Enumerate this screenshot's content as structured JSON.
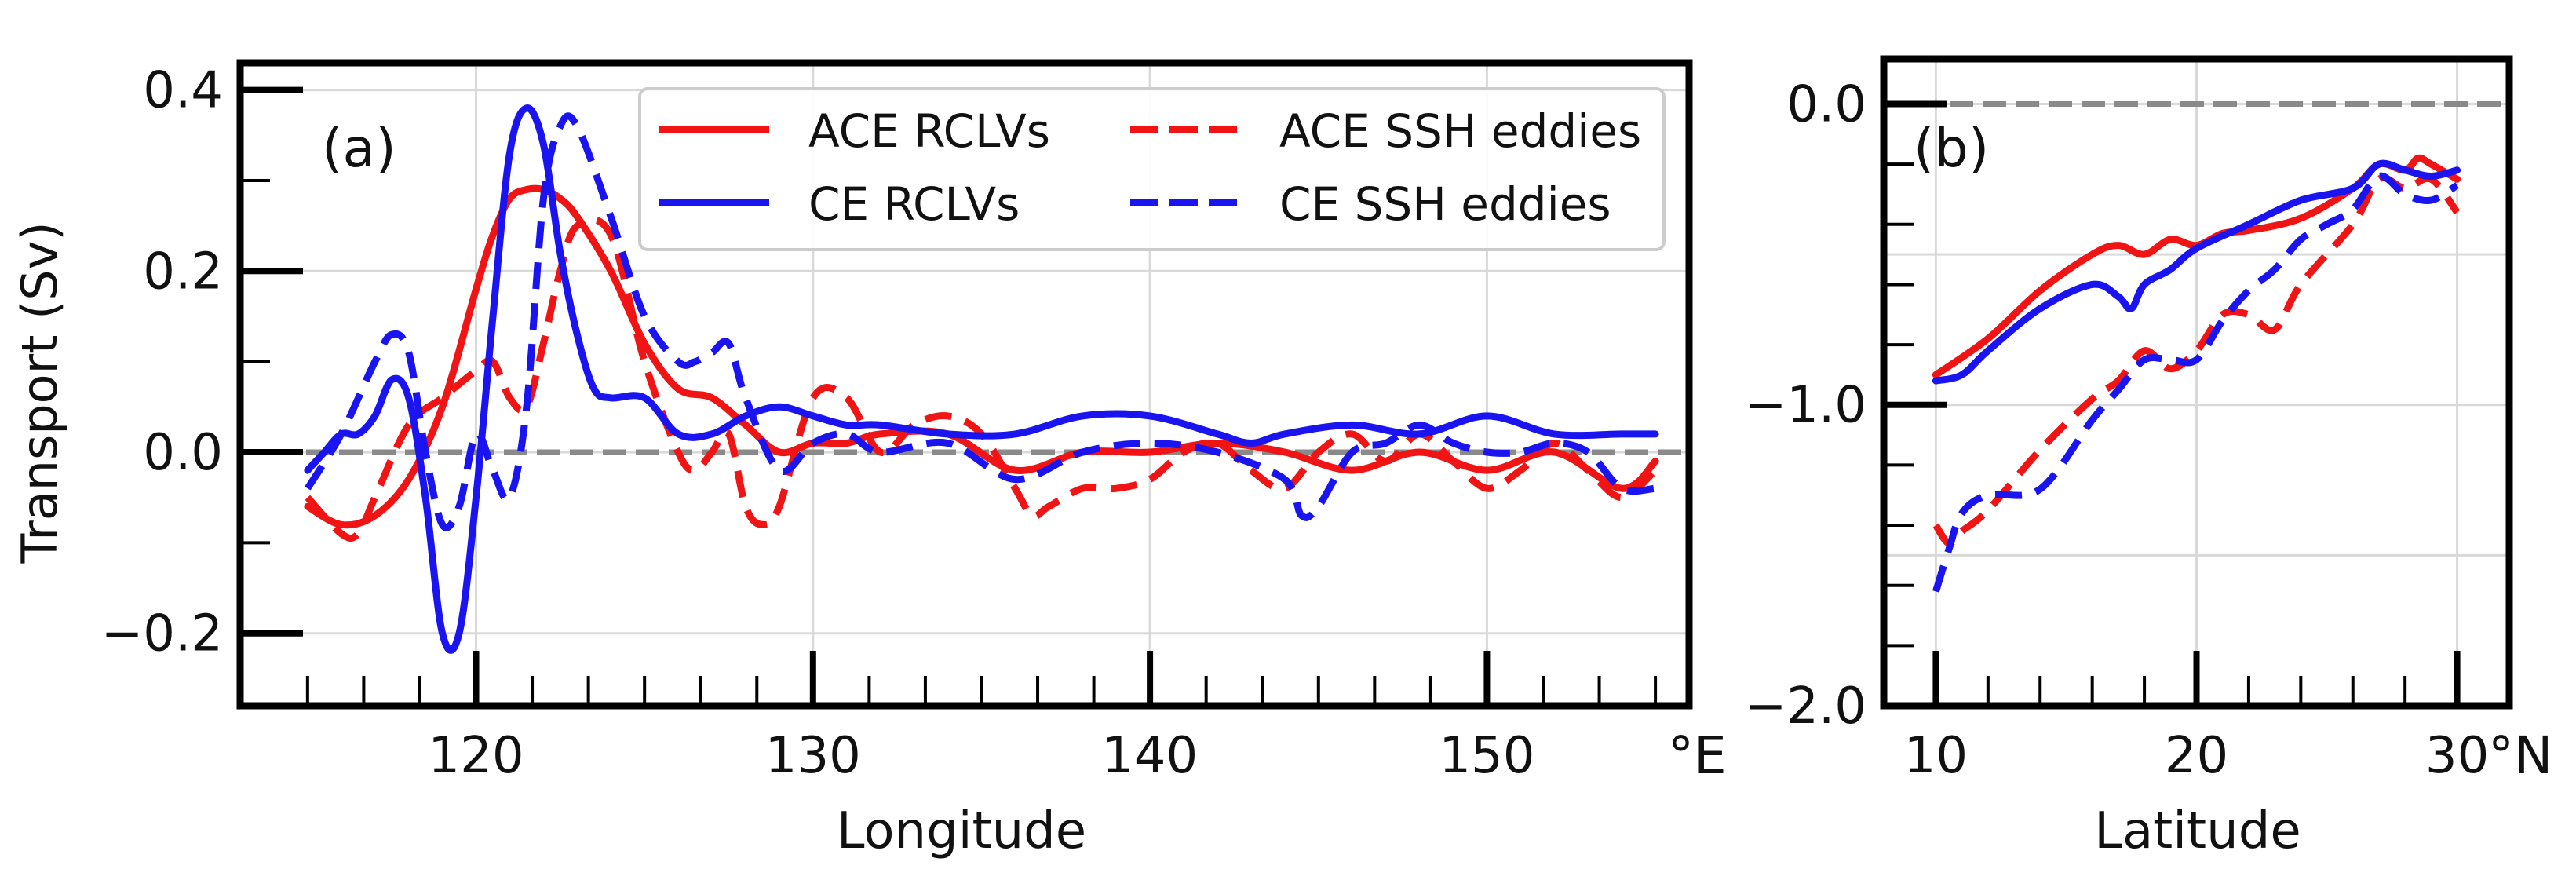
{
  "figure": {
    "ylabel": "Transport (Sv)",
    "colors": {
      "ace": "#f01414",
      "ce": "#1a14f0",
      "zero_line": "#8a8a8a",
      "grid": "#d9d9d9",
      "axis": "#000000"
    }
  },
  "legend": [
    {
      "label": "ACE RCLVs",
      "color": "#f01414",
      "dash": "solid"
    },
    {
      "label": "ACE SSH eddies",
      "color": "#f01414",
      "dash": "dashed"
    },
    {
      "label": "CE RCLVs",
      "color": "#1a14f0",
      "dash": "solid"
    },
    {
      "label": "CE SSH eddies",
      "color": "#1a14f0",
      "dash": "dashed"
    }
  ],
  "chart_data": [
    {
      "type": "line",
      "panel_label": "(a)",
      "xlabel": "Longitude",
      "ylabel": "Transport (Sv)",
      "x_unit_label": "°E",
      "xlim": [
        113,
        156
      ],
      "ylim": [
        -0.28,
        0.43
      ],
      "xticks": [
        120,
        130,
        140,
        150
      ],
      "xtick_labels": [
        "120",
        "130",
        "140",
        "150"
      ],
      "yticks": [
        0.4,
        0.2,
        0.0,
        -0.2
      ],
      "ytick_labels": [
        "0.4",
        "0.2",
        "0.0",
        "−0.2"
      ],
      "grid": true,
      "legend_position": "top-right",
      "zero_line": 0.0,
      "series": [
        {
          "name": "ACE RCLVs",
          "style": "solid",
          "color": "#f01414",
          "x": [
            115,
            116,
            117,
            118,
            119,
            120,
            120.5,
            121,
            121.5,
            122,
            122.5,
            123,
            124,
            125,
            126,
            127,
            128,
            129,
            130,
            131,
            132,
            134,
            136,
            138,
            140,
            142,
            144,
            146,
            148,
            150,
            152,
            154,
            155
          ],
          "y": [
            -0.06,
            -0.08,
            -0.07,
            -0.03,
            0.05,
            0.18,
            0.24,
            0.28,
            0.29,
            0.29,
            0.28,
            0.26,
            0.2,
            0.12,
            0.07,
            0.06,
            0.03,
            0.0,
            0.01,
            0.01,
            0.02,
            0.02,
            -0.02,
            0.0,
            0.0,
            0.01,
            0.0,
            -0.02,
            0.0,
            -0.02,
            0.0,
            -0.04,
            -0.01
          ]
        },
        {
          "name": "ACE SSH eddies",
          "style": "dashed",
          "color": "#f01414",
          "x": [
            115,
            116,
            116.5,
            117,
            118,
            119,
            120,
            120.5,
            121,
            121.5,
            122,
            122.5,
            123,
            124,
            125,
            126,
            126.5,
            127,
            127.5,
            128,
            128.5,
            129,
            130,
            131,
            132,
            133,
            134,
            135,
            136,
            136.5,
            137,
            138,
            139,
            140,
            141,
            142,
            143,
            144,
            145,
            146,
            147,
            148,
            149,
            150,
            151,
            152,
            153,
            154,
            155
          ],
          "y": [
            -0.05,
            -0.09,
            -0.09,
            -0.05,
            0.03,
            0.06,
            0.09,
            0.1,
            0.06,
            0.05,
            0.12,
            0.2,
            0.25,
            0.24,
            0.1,
            0.0,
            -0.02,
            0.0,
            0.02,
            -0.06,
            -0.08,
            -0.06,
            0.06,
            0.06,
            0.0,
            0.03,
            0.04,
            0.02,
            -0.04,
            -0.07,
            -0.06,
            -0.04,
            -0.04,
            -0.03,
            0.0,
            0.01,
            -0.02,
            -0.04,
            0.0,
            0.02,
            -0.01,
            0.02,
            -0.01,
            -0.04,
            -0.02,
            0.01,
            -0.02,
            -0.05,
            -0.02
          ]
        },
        {
          "name": "CE RCLVs",
          "style": "solid",
          "color": "#1a14f0",
          "x": [
            115,
            115.5,
            116,
            116.5,
            117,
            117.5,
            118,
            118.5,
            119,
            119.5,
            120,
            120.5,
            121,
            121.5,
            122,
            122.5,
            123,
            123.5,
            124,
            125,
            126,
            127,
            128,
            129,
            130,
            131,
            132,
            134,
            136,
            138,
            140,
            142,
            143,
            144,
            146,
            148,
            150,
            152,
            154,
            155
          ],
          "y": [
            -0.02,
            0.0,
            0.02,
            0.02,
            0.04,
            0.08,
            0.06,
            -0.05,
            -0.2,
            -0.2,
            -0.05,
            0.15,
            0.33,
            0.38,
            0.34,
            0.22,
            0.13,
            0.07,
            0.06,
            0.06,
            0.02,
            0.02,
            0.04,
            0.05,
            0.04,
            0.03,
            0.03,
            0.02,
            0.02,
            0.04,
            0.04,
            0.02,
            0.01,
            0.02,
            0.03,
            0.02,
            0.04,
            0.02,
            0.02,
            0.02
          ]
        },
        {
          "name": "CE SSH eddies",
          "style": "dashed",
          "color": "#1a14f0",
          "x": [
            115,
            116,
            117,
            117.5,
            118,
            118.5,
            119,
            119.5,
            120,
            120.5,
            121,
            121.5,
            122,
            122.5,
            123,
            124,
            125,
            126,
            126.5,
            127,
            127.5,
            128,
            129,
            130,
            131,
            132,
            134,
            136,
            138,
            140,
            142,
            144,
            144.5,
            145,
            146,
            147,
            148,
            149,
            150,
            151,
            152,
            153,
            154,
            155
          ],
          "y": [
            -0.04,
            0.02,
            0.1,
            0.13,
            0.11,
            0.0,
            -0.08,
            -0.06,
            0.02,
            -0.02,
            -0.05,
            0.05,
            0.28,
            0.36,
            0.36,
            0.26,
            0.15,
            0.1,
            0.1,
            0.11,
            0.12,
            0.06,
            -0.02,
            0.01,
            0.02,
            0.0,
            0.01,
            -0.03,
            0.0,
            0.01,
            0.0,
            -0.03,
            -0.07,
            -0.06,
            0.0,
            0.01,
            0.03,
            0.01,
            0.0,
            0.0,
            0.01,
            0.0,
            -0.04,
            -0.04
          ]
        }
      ]
    },
    {
      "type": "line",
      "panel_label": "(b)",
      "xlabel": "Latitude",
      "ylabel": "",
      "x_unit_label": "°N",
      "xlim": [
        8,
        32
      ],
      "ylim": [
        -2.0,
        0.15
      ],
      "xticks": [
        10,
        20,
        30
      ],
      "xtick_labels": [
        "10",
        "20",
        "30"
      ],
      "yticks": [
        0.0,
        -1.0,
        -2.0
      ],
      "ytick_labels": [
        "0.0",
        "−1.0",
        "−2.0"
      ],
      "grid": true,
      "zero_line": 0.0,
      "series": [
        {
          "name": "ACE RCLVs",
          "style": "solid",
          "color": "#f01414",
          "x": [
            10,
            12,
            14,
            16,
            17,
            18,
            19,
            20,
            21,
            22,
            24,
            26,
            27,
            28,
            28.5,
            29,
            30
          ],
          "y": [
            -0.9,
            -0.78,
            -0.62,
            -0.5,
            -0.47,
            -0.5,
            -0.45,
            -0.47,
            -0.43,
            -0.42,
            -0.38,
            -0.28,
            -0.2,
            -0.22,
            -0.18,
            -0.2,
            -0.25
          ]
        },
        {
          "name": "ACE SSH eddies",
          "style": "dashed",
          "color": "#f01414",
          "x": [
            10,
            10.5,
            11,
            12,
            14,
            16,
            17,
            18,
            19,
            20,
            21,
            22,
            23,
            24,
            26,
            27,
            28,
            29,
            30
          ],
          "y": [
            -1.4,
            -1.46,
            -1.42,
            -1.35,
            -1.15,
            -0.98,
            -0.92,
            -0.82,
            -0.88,
            -0.82,
            -0.7,
            -0.7,
            -0.75,
            -0.6,
            -0.4,
            -0.25,
            -0.28,
            -0.25,
            -0.36
          ]
        },
        {
          "name": "CE RCLVs",
          "style": "solid",
          "color": "#1a14f0",
          "x": [
            10,
            11,
            12,
            14,
            16,
            17,
            17.5,
            18,
            19,
            20,
            22,
            24,
            26,
            27,
            28,
            29,
            30
          ],
          "y": [
            -0.92,
            -0.9,
            -0.82,
            -0.68,
            -0.6,
            -0.64,
            -0.68,
            -0.6,
            -0.55,
            -0.48,
            -0.4,
            -0.32,
            -0.28,
            -0.2,
            -0.22,
            -0.24,
            -0.22
          ]
        },
        {
          "name": "CE SSH eddies",
          "style": "dashed",
          "color": "#1a14f0",
          "x": [
            10,
            10.5,
            11,
            12,
            14,
            16,
            17,
            18,
            19,
            20,
            21,
            22,
            23,
            24,
            25,
            26,
            27,
            28,
            29,
            30
          ],
          "y": [
            -1.62,
            -1.48,
            -1.36,
            -1.3,
            -1.28,
            -1.05,
            -0.95,
            -0.85,
            -0.85,
            -0.85,
            -0.72,
            -0.62,
            -0.55,
            -0.45,
            -0.4,
            -0.35,
            -0.24,
            -0.3,
            -0.32,
            -0.27
          ]
        }
      ]
    }
  ]
}
